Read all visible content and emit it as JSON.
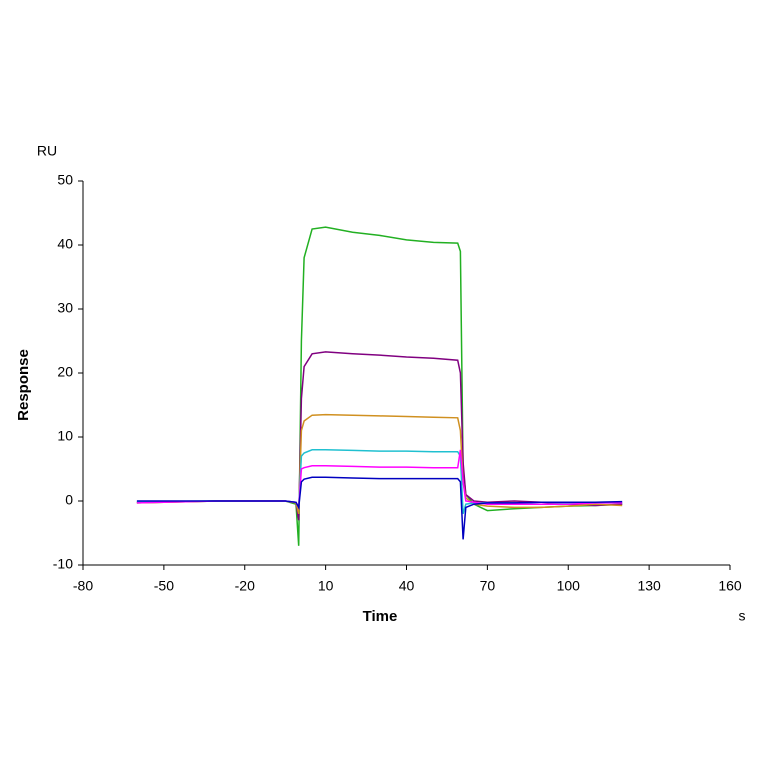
{
  "chart_data": {
    "type": "line",
    "xlabel": "Time",
    "ylabel": "Response",
    "x_unit_label": "s",
    "y_unit_label": "RU",
    "x": [
      -60,
      -30,
      -5,
      -1,
      0,
      1,
      2,
      5,
      10,
      20,
      30,
      40,
      50,
      59,
      60,
      61,
      62,
      65,
      70,
      80,
      90,
      100,
      110,
      120
    ],
    "series": [
      {
        "name": "green",
        "color": "#22b022",
        "values": [
          -0.3,
          0,
          0,
          -0.5,
          -7,
          25,
          38,
          42.5,
          42.8,
          42,
          41.5,
          40.8,
          40.4,
          40.3,
          39,
          5,
          1,
          -0.5,
          -1.5,
          -1.2,
          -1,
          -0.8,
          -0.7,
          -0.5
        ]
      },
      {
        "name": "purple",
        "color": "#800080",
        "values": [
          -0.2,
          0,
          0,
          -0.3,
          -3,
          16,
          21,
          23,
          23.3,
          23,
          22.8,
          22.5,
          22.3,
          22,
          20,
          6,
          1,
          0,
          -0.2,
          0,
          -0.2,
          -0.5,
          -0.7,
          -0.5
        ]
      },
      {
        "name": "orange",
        "color": "#d09020",
        "values": [
          -0.3,
          0,
          0,
          -0.3,
          -2,
          11,
          12.5,
          13.4,
          13.5,
          13.4,
          13.3,
          13.2,
          13.1,
          13,
          11,
          3,
          0.5,
          -0.5,
          -0.8,
          -1,
          -1,
          -0.8,
          -0.5,
          -0.7
        ]
      },
      {
        "name": "cyan",
        "color": "#20c0d0",
        "values": [
          -0.1,
          0,
          0,
          -0.2,
          -1,
          7,
          7.5,
          8,
          8,
          7.9,
          7.8,
          7.8,
          7.7,
          7.7,
          7,
          -2,
          -0.5,
          -0.3,
          -0.3,
          -0.3,
          -0.5,
          -0.4,
          -0.3,
          -0.3
        ]
      },
      {
        "name": "magenta",
        "color": "#ff00ff",
        "values": [
          -0.3,
          0,
          0,
          -0.2,
          -1,
          5,
          5.2,
          5.5,
          5.5,
          5.4,
          5.3,
          5.3,
          5.2,
          5.2,
          8,
          3,
          0,
          -0.2,
          -0.5,
          -0.5,
          -0.5,
          -0.5,
          -0.3,
          -0.3
        ]
      },
      {
        "name": "blue",
        "color": "#0000c0",
        "values": [
          0,
          0,
          0,
          -0.2,
          -1,
          3,
          3.4,
          3.7,
          3.7,
          3.6,
          3.5,
          3.5,
          3.5,
          3.5,
          3,
          -6,
          -1,
          -0.5,
          -0.3,
          -0.3,
          -0.2,
          -0.2,
          -0.2,
          -0.1
        ]
      }
    ],
    "xlim": [
      -80,
      160
    ],
    "xticks": [
      -80,
      -50,
      -20,
      10,
      40,
      70,
      100,
      130,
      160
    ],
    "ylim": [
      -10,
      50
    ],
    "yticks": [
      -10,
      0,
      10,
      20,
      30,
      40,
      50
    ]
  }
}
